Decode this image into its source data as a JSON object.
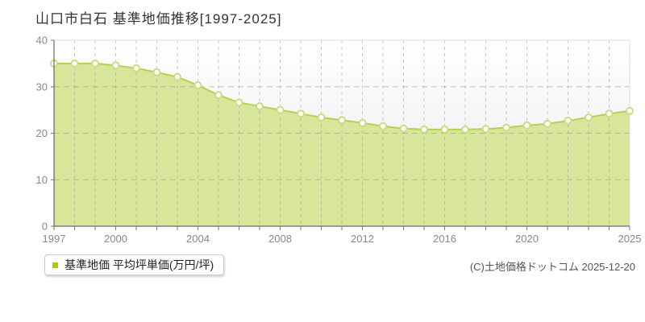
{
  "header": {
    "title": "山口市白石 基準地価推移[1997-2025]"
  },
  "legend": {
    "label": "基準地価 平均坪単価(万円/坪)",
    "swatch_color": "#a3ce14"
  },
  "footer": {
    "copyright": "(C)土地価格ドットコム 2025-12-20"
  },
  "chart_data": {
    "type": "area",
    "title": "山口市白石 基準地価推移[1997-2025]",
    "x": [
      1997,
      1998,
      1999,
      2000,
      2001,
      2002,
      2003,
      2004,
      2005,
      2006,
      2007,
      2008,
      2009,
      2010,
      2011,
      2012,
      2013,
      2014,
      2015,
      2016,
      2017,
      2018,
      2019,
      2020,
      2021,
      2022,
      2023,
      2024,
      2025
    ],
    "series": [
      {
        "name": "基準地価 平均坪単価(万円/坪)",
        "values": [
          35.0,
          35.0,
          35.0,
          34.6,
          34.0,
          33.1,
          32.1,
          30.3,
          28.2,
          26.6,
          25.8,
          25.0,
          24.2,
          23.4,
          22.8,
          22.2,
          21.5,
          21.0,
          20.8,
          20.8,
          20.8,
          20.9,
          21.2,
          21.7,
          22.0,
          22.7,
          23.4,
          24.2,
          24.8
        ]
      }
    ],
    "xlabel": "",
    "ylabel": "",
    "ylim": [
      0,
      40
    ],
    "yticks": [
      0,
      10,
      20,
      30,
      40
    ],
    "xticks_labeled": [
      1997,
      2000,
      2004,
      2008,
      2012,
      2016,
      2020,
      2025
    ],
    "grid": true,
    "legend_position": "bottom-left",
    "marker": "circle",
    "colors": {
      "area_fill": "#d8e69c",
      "line": "#b4d24f",
      "marker_fill": "#ffffff",
      "marker_stroke": "#cadd82",
      "grid": "#999999",
      "axis": "#4a4a4a",
      "tick": "#777777",
      "plot_border": "#dddddd",
      "tick_label": "#888888",
      "plot_bg_top": "#ffffff",
      "plot_bg_bottom": "#e9e9e9"
    }
  }
}
